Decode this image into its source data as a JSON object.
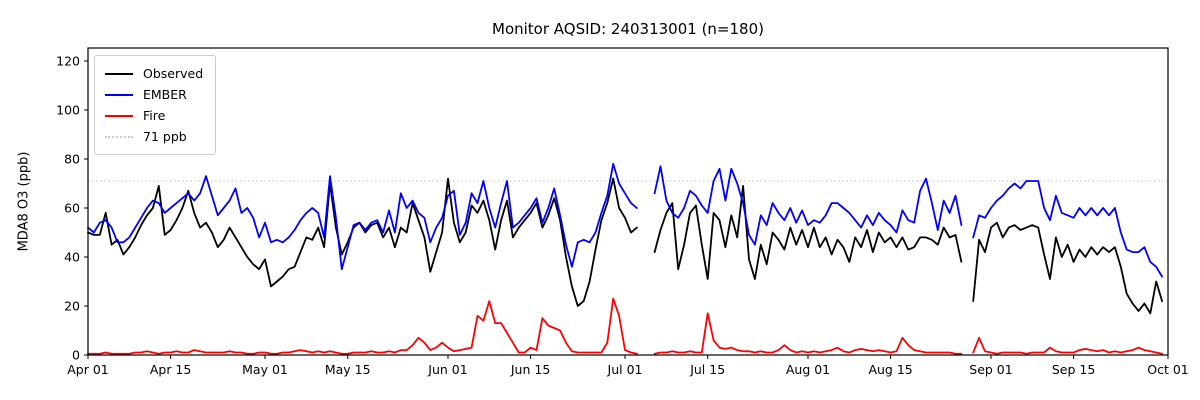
{
  "title": "Monitor AQSID: 240313001 (n=180)",
  "ylabel": "MDA8 O3 (ppb)",
  "monitor_aqsid": "240313001",
  "n_observations": 180,
  "legend": {
    "entries": [
      {
        "label": "Observed",
        "color": "#000000",
        "dash": "solid"
      },
      {
        "label": "EMBER",
        "color": "#0000ff",
        "dash": "solid"
      },
      {
        "label": "Fire",
        "color": "#ff0000",
        "dash": "solid"
      },
      {
        "label": "71 ppb",
        "color": "#c9c9c9",
        "dash": "dotted"
      }
    ]
  },
  "chart_data": {
    "type": "line",
    "title": "Monitor AQSID: 240313001 (n=180)",
    "xlabel": "",
    "ylabel": "MDA8 O3 (ppb)",
    "ylim": [
      0,
      125
    ],
    "y_ticks": [
      0,
      20,
      40,
      60,
      80,
      100,
      120
    ],
    "grid": false,
    "legend_position": "upper-left",
    "x_start": "Apr 01",
    "x_end": "Oct 01",
    "x_unit": "day",
    "x_ticks": [
      {
        "label": "Apr 01",
        "day": 0
      },
      {
        "label": "Apr 15",
        "day": 14
      },
      {
        "label": "May 01",
        "day": 30
      },
      {
        "label": "May 15",
        "day": 44
      },
      {
        "label": "Jun 01",
        "day": 61
      },
      {
        "label": "Jun 15",
        "day": 75
      },
      {
        "label": "Jul 01",
        "day": 91
      },
      {
        "label": "Jul 15",
        "day": 105
      },
      {
        "label": "Aug 01",
        "day": 122
      },
      {
        "label": "Aug 15",
        "day": 136
      },
      {
        "label": "Sep 01",
        "day": 153
      },
      {
        "label": "Sep 15",
        "day": 167
      },
      {
        "label": "Oct 01",
        "day": 183
      }
    ],
    "threshold": {
      "value": 71,
      "label": "71 ppb",
      "color": "#c9c9c9",
      "style": "dotted"
    },
    "missing_days": [
      "Jul 04",
      "Jul 05",
      "Aug 28"
    ],
    "series": [
      {
        "name": "Observed",
        "color": "#000000",
        "values": [
          50,
          49,
          49,
          58,
          45,
          47,
          41,
          44,
          48,
          53,
          57,
          60,
          69,
          49,
          51,
          55,
          60,
          67,
          58,
          52,
          54,
          50,
          44,
          47,
          52,
          48,
          44,
          40,
          37,
          35,
          39,
          28,
          30,
          32,
          35,
          36,
          42,
          48,
          47,
          52,
          44,
          70,
          52,
          41,
          46,
          52,
          54,
          50,
          53,
          54,
          48,
          52,
          44,
          52,
          50,
          62,
          55,
          48,
          34,
          42,
          50,
          72,
          54,
          46,
          50,
          61,
          58,
          63,
          55,
          43,
          55,
          63,
          48,
          52,
          55,
          58,
          62,
          52,
          57,
          64,
          55,
          40,
          28,
          20,
          22,
          30,
          43,
          55,
          62,
          72,
          60,
          56,
          50,
          52,
          null,
          null,
          42,
          51,
          58,
          62,
          35,
          45,
          58,
          61,
          45,
          31,
          58,
          55,
          44,
          57,
          48,
          69,
          39,
          31,
          45,
          37,
          50,
          47,
          43,
          52,
          45,
          51,
          44,
          52,
          44,
          48,
          41,
          47,
          44,
          38,
          48,
          44,
          51,
          42,
          50,
          46,
          48,
          44,
          48,
          43,
          44,
          48,
          48,
          47,
          45,
          52,
          48,
          49,
          38,
          null,
          22,
          47,
          42,
          52,
          54,
          48,
          52,
          53,
          51,
          52,
          53,
          52,
          41,
          31,
          48,
          40,
          45,
          38,
          43,
          40,
          44,
          41,
          44,
          42,
          44,
          36,
          25,
          21,
          18,
          21,
          17,
          30,
          22
        ]
      },
      {
        "name": "EMBER",
        "color": "#0000ff",
        "values": [
          52,
          50,
          54,
          55,
          52,
          46,
          46,
          48,
          52,
          56,
          60,
          63,
          62,
          58,
          60,
          62,
          64,
          66,
          63,
          66,
          73,
          65,
          57,
          60,
          63,
          68,
          58,
          60,
          56,
          48,
          54,
          46,
          47,
          46,
          48,
          51,
          55,
          58,
          60,
          58,
          48,
          73,
          56,
          35,
          44,
          53,
          54,
          51,
          54,
          55,
          50,
          59,
          50,
          66,
          60,
          63,
          58,
          56,
          46,
          52,
          56,
          65,
          67,
          49,
          54,
          66,
          62,
          71,
          60,
          52,
          62,
          71,
          52,
          54,
          57,
          60,
          64,
          54,
          60,
          68,
          57,
          45,
          36,
          46,
          47,
          46,
          50,
          58,
          65,
          78,
          70,
          66,
          62,
          60,
          null,
          null,
          66,
          77,
          63,
          58,
          56,
          60,
          67,
          65,
          61,
          58,
          71,
          76,
          63,
          76,
          70,
          62,
          49,
          45,
          57,
          53,
          62,
          58,
          55,
          60,
          54,
          59,
          53,
          55,
          54,
          57,
          62,
          62,
          60,
          58,
          55,
          52,
          57,
          53,
          58,
          55,
          53,
          50,
          59,
          55,
          54,
          67,
          72,
          62,
          51,
          63,
          58,
          65,
          53,
          null,
          48,
          57,
          56,
          60,
          63,
          65,
          68,
          70,
          68,
          71,
          71,
          71,
          60,
          55,
          65,
          58,
          57,
          56,
          60,
          57,
          60,
          57,
          60,
          57,
          60,
          50,
          43,
          42,
          42,
          44,
          38,
          36,
          32
        ]
      },
      {
        "name": "Fire",
        "color": "#ff0000",
        "values": [
          0.5,
          0.5,
          0.5,
          1,
          0.5,
          0.5,
          0.5,
          0.5,
          1,
          1,
          1.5,
          1,
          0.5,
          1,
          1,
          1.5,
          1,
          1,
          2,
          1.5,
          1,
          1,
          1,
          1,
          1.5,
          1,
          1,
          0.5,
          0.5,
          1,
          1,
          0.5,
          0.5,
          1,
          1,
          1.5,
          2,
          1.5,
          1,
          1.5,
          1,
          1.5,
          1,
          0.5,
          0.5,
          1,
          1,
          1,
          1.5,
          1,
          1,
          1.5,
          1,
          2,
          2,
          4,
          7,
          5,
          2,
          3,
          5,
          3,
          1.5,
          2,
          2.5,
          3,
          16,
          14,
          22,
          13,
          13,
          9,
          5,
          1,
          1,
          3,
          2,
          15,
          12,
          11,
          10,
          5,
          1.5,
          1,
          1,
          1,
          1,
          1,
          5,
          23,
          16,
          2,
          1,
          0.5,
          null,
          null,
          0.5,
          1,
          1,
          1.5,
          1,
          1,
          1.5,
          1,
          1,
          17,
          6,
          3,
          2.5,
          3,
          2,
          1.5,
          1.5,
          1,
          1.5,
          1,
          1,
          2,
          4,
          2,
          1,
          1.5,
          1,
          1.5,
          1,
          1.5,
          2,
          3,
          1.5,
          1,
          2,
          2.5,
          2,
          1.5,
          2,
          1.5,
          1,
          1.5,
          7,
          4,
          2,
          1.5,
          1,
          1,
          1,
          1,
          1,
          0.5,
          0.5,
          null,
          1,
          7,
          1.5,
          1,
          0.5,
          1,
          1,
          1,
          1,
          0.5,
          1,
          1,
          1,
          3,
          1.5,
          1,
          1,
          1,
          2,
          2.5,
          2,
          1.5,
          2,
          1,
          1.5,
          1,
          1.5,
          2,
          3,
          2,
          1.5,
          1,
          0.5
        ]
      }
    ]
  }
}
